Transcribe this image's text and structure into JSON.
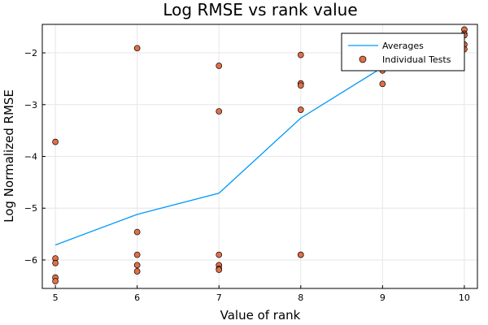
{
  "chart_data": {
    "type": "scatter",
    "title": "Log RMSE vs rank value",
    "xlabel": "Value of rank",
    "ylabel": "Log Normalized RMSE",
    "xlim": [
      4.84,
      10.16
    ],
    "ylim": [
      -6.55,
      -1.45
    ],
    "xticks": [
      5,
      6,
      7,
      8,
      9,
      10
    ],
    "yticks": [
      -6,
      -5,
      -4,
      -3,
      -2
    ],
    "ytick_labels": [
      "−6",
      "−5",
      "−4",
      "−3",
      "−2"
    ],
    "grid": true,
    "legend_position": "top-right",
    "series": [
      {
        "name": "Averages",
        "kind": "line",
        "color": "#009af9",
        "x": [
          5,
          6,
          7,
          8,
          9,
          10
        ],
        "y": [
          -5.71,
          -5.12,
          -4.71,
          -3.26,
          -2.28,
          -1.71
        ]
      },
      {
        "name": "Individual Tests",
        "kind": "scatter",
        "color": "#e26f46",
        "x": [
          5,
          5,
          5,
          5,
          5,
          6,
          6,
          6,
          6,
          6,
          7,
          7,
          7,
          7,
          7,
          7,
          8,
          8,
          8,
          8,
          8,
          8,
          9,
          9,
          9,
          9,
          10,
          10,
          10,
          10,
          10
        ],
        "y": [
          -3.72,
          -5.97,
          -6.06,
          -6.34,
          -6.41,
          -1.91,
          -5.46,
          -5.9,
          -6.1,
          -6.22,
          -2.25,
          -3.13,
          -5.9,
          -6.1,
          -6.17,
          -6.19,
          -2.04,
          -2.59,
          -2.63,
          -3.1,
          -5.9,
          -5.9,
          -2.25,
          -2.3,
          -2.34,
          -2.6,
          -1.55,
          -1.63,
          -1.66,
          -1.84,
          -1.93
        ]
      }
    ]
  }
}
